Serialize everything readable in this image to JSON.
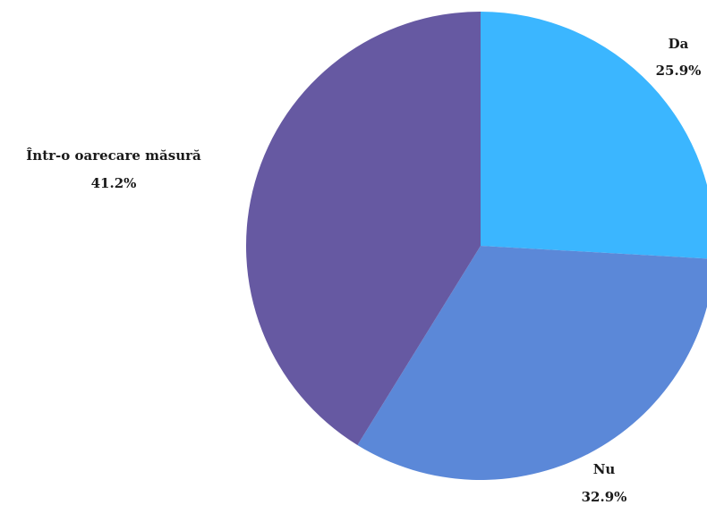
{
  "chart_data": {
    "type": "pie",
    "slices": [
      {
        "label": "Da",
        "value": 25.9,
        "value_label": "25.9%",
        "color": "#3bb6ff"
      },
      {
        "label": "Nu",
        "value": 32.9,
        "value_label": "32.9%",
        "color": "#5b88d8"
      },
      {
        "label": "Într-o oarecare măsură",
        "value": 41.2,
        "value_label": "41.2%",
        "color": "#6659a2"
      }
    ],
    "start": "12 o'clock",
    "direction": "clockwise",
    "legend": "none",
    "data_labels": "outside"
  }
}
